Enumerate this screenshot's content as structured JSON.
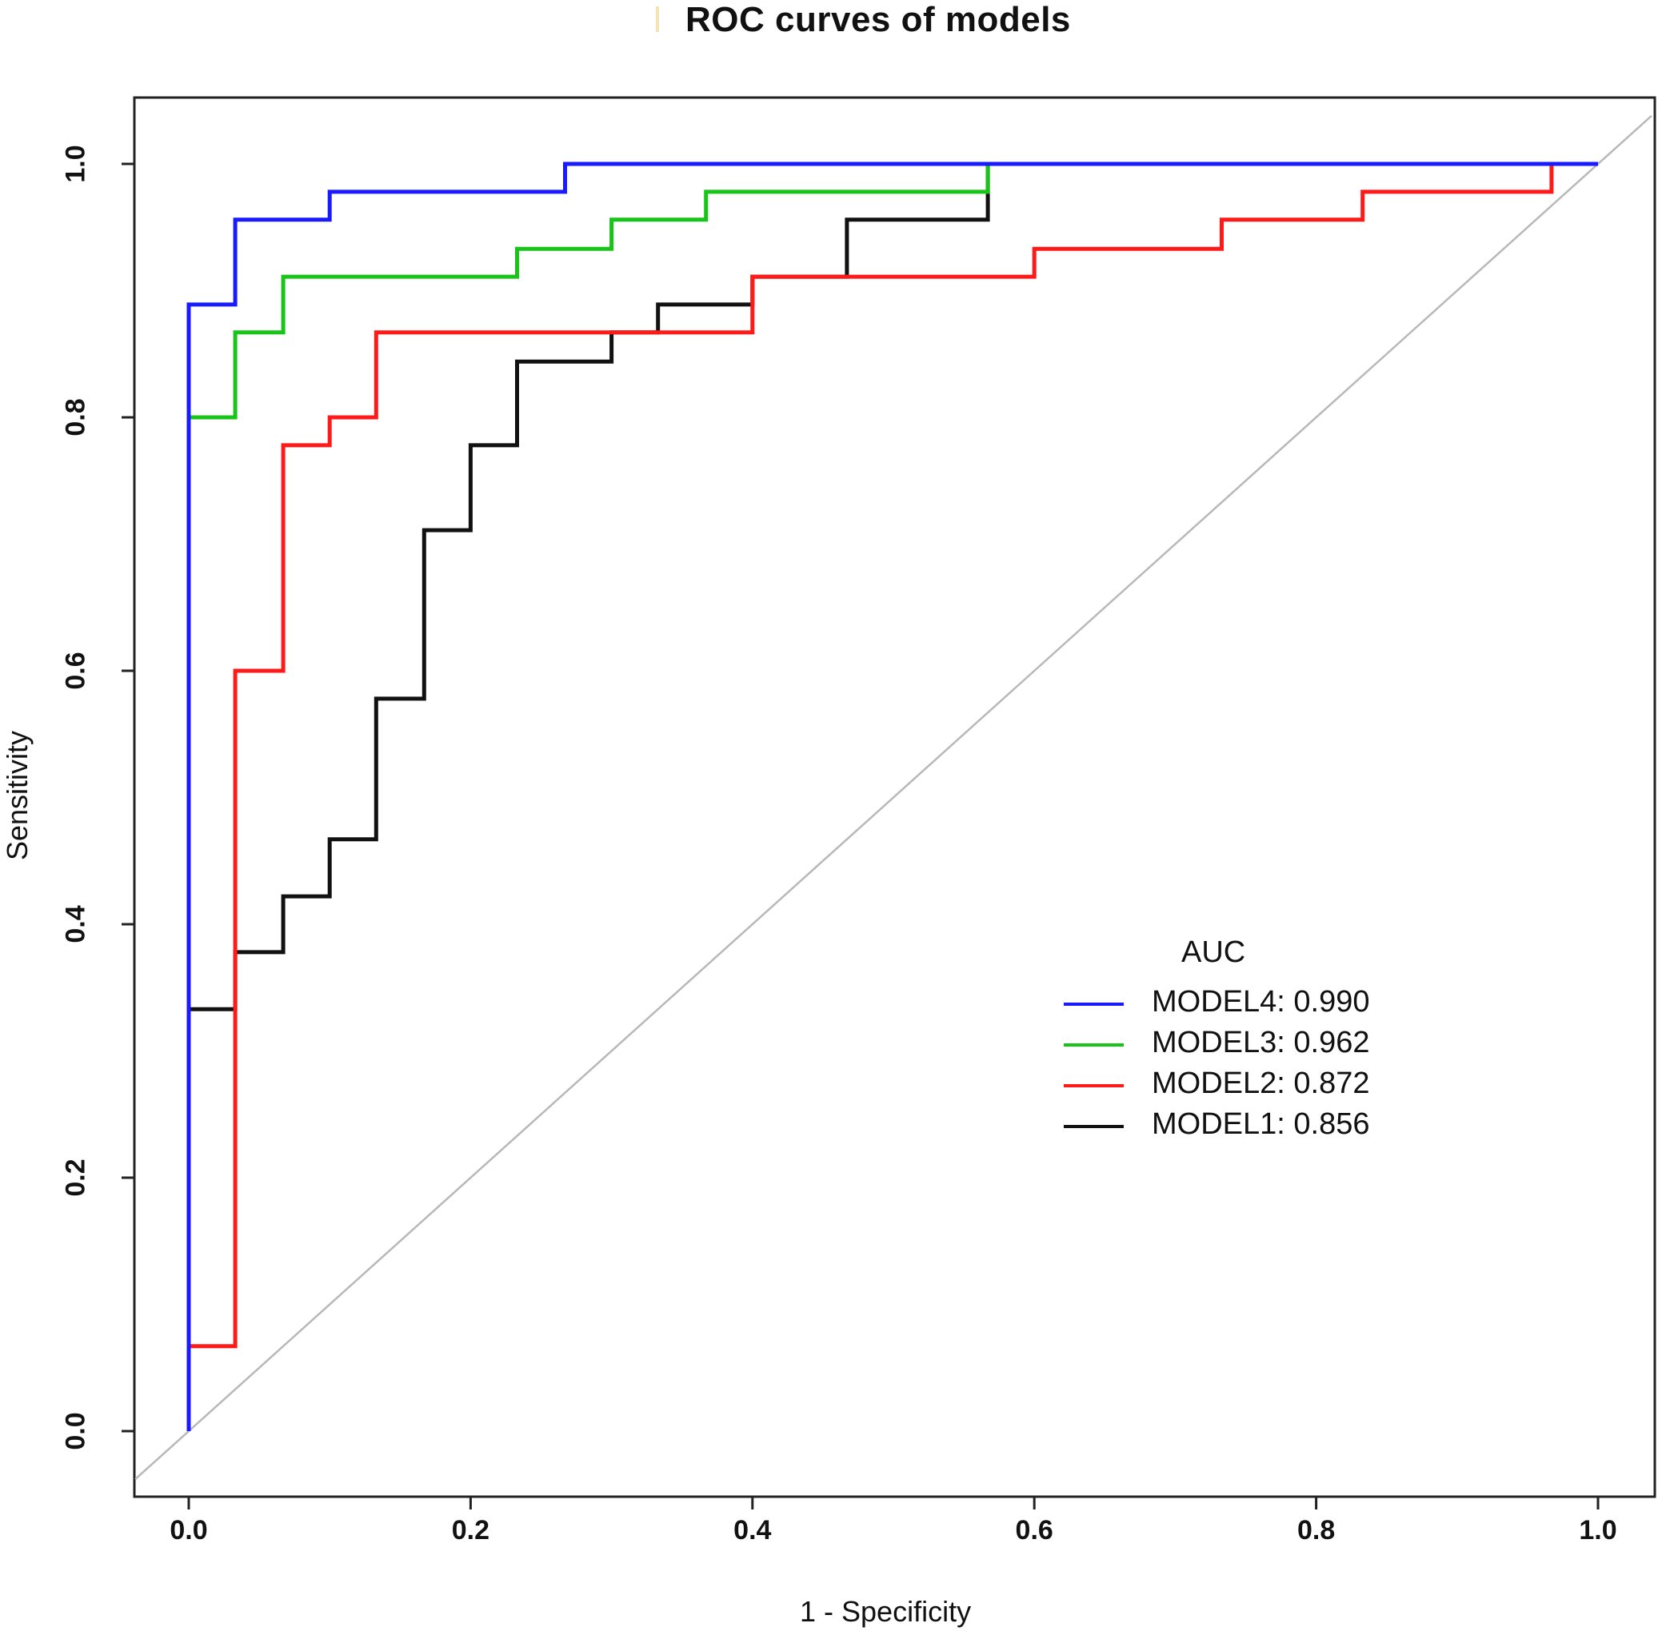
{
  "chart_data": {
    "type": "line",
    "title": "ROC curves of models",
    "xlabel": "1 - Specificity",
    "ylabel": "Sensitivity",
    "xlim": [
      0.0,
      1.0
    ],
    "ylim": [
      0.0,
      1.0
    ],
    "xticks": [
      "0.0",
      "0.2",
      "0.4",
      "0.6",
      "0.8",
      "1.0"
    ],
    "yticks": [
      "0.0",
      "0.2",
      "0.4",
      "0.6",
      "0.8",
      "1.0"
    ],
    "legend_title": "AUC",
    "legend_position": "lower-right",
    "reference_line": {
      "x": [
        0,
        1
      ],
      "y": [
        0,
        1
      ],
      "color": "#b8b8b8"
    },
    "series": [
      {
        "name": "MODEL4",
        "auc": "0.990",
        "legend_label": "MODEL4: 0.990",
        "color": "#1a1aff",
        "x": [
          0,
          0,
          0.033,
          0.033,
          0.1,
          0.1,
          0.267,
          0.267,
          1.0
        ],
        "y": [
          0,
          0.889,
          0.889,
          0.956,
          0.956,
          0.978,
          0.978,
          1.0,
          1.0
        ]
      },
      {
        "name": "MODEL3",
        "auc": "0.962",
        "legend_label": "MODEL3: 0.962",
        "color": "#19c419",
        "x": [
          0,
          0,
          0.033,
          0.033,
          0.067,
          0.067,
          0.233,
          0.233,
          0.3,
          0.3,
          0.367,
          0.367,
          0.567,
          0.567,
          1.0
        ],
        "y": [
          0,
          0.8,
          0.8,
          0.867,
          0.867,
          0.911,
          0.911,
          0.933,
          0.933,
          0.956,
          0.956,
          0.978,
          0.978,
          1.0,
          1.0
        ]
      },
      {
        "name": "MODEL2",
        "auc": "0.872",
        "legend_label": "MODEL2: 0.872",
        "color": "#ff1a1a",
        "x": [
          0,
          0,
          0.033,
          0.033,
          0.067,
          0.067,
          0.1,
          0.1,
          0.133,
          0.133,
          0.4,
          0.4,
          0.6,
          0.6,
          0.733,
          0.733,
          0.833,
          0.833,
          0.967,
          0.967,
          1.0
        ],
        "y": [
          0,
          0.067,
          0.067,
          0.6,
          0.6,
          0.778,
          0.778,
          0.8,
          0.8,
          0.867,
          0.867,
          0.911,
          0.911,
          0.933,
          0.933,
          0.956,
          0.956,
          0.978,
          0.978,
          1.0,
          1.0
        ]
      },
      {
        "name": "MODEL1",
        "auc": "0.856",
        "legend_label": "MODEL1: 0.856",
        "color": "#111111",
        "x": [
          0,
          0,
          0.033,
          0.033,
          0.067,
          0.067,
          0.1,
          0.1,
          0.133,
          0.133,
          0.167,
          0.167,
          0.2,
          0.2,
          0.233,
          0.233,
          0.3,
          0.3,
          0.333,
          0.333,
          0.4,
          0.4,
          0.467,
          0.467,
          0.567,
          0.567,
          1.0
        ],
        "y": [
          0,
          0.333,
          0.333,
          0.378,
          0.378,
          0.422,
          0.422,
          0.467,
          0.467,
          0.578,
          0.578,
          0.711,
          0.711,
          0.778,
          0.778,
          0.844,
          0.844,
          0.867,
          0.867,
          0.889,
          0.889,
          0.911,
          0.911,
          0.956,
          0.956,
          1.0,
          1.0
        ]
      }
    ]
  }
}
